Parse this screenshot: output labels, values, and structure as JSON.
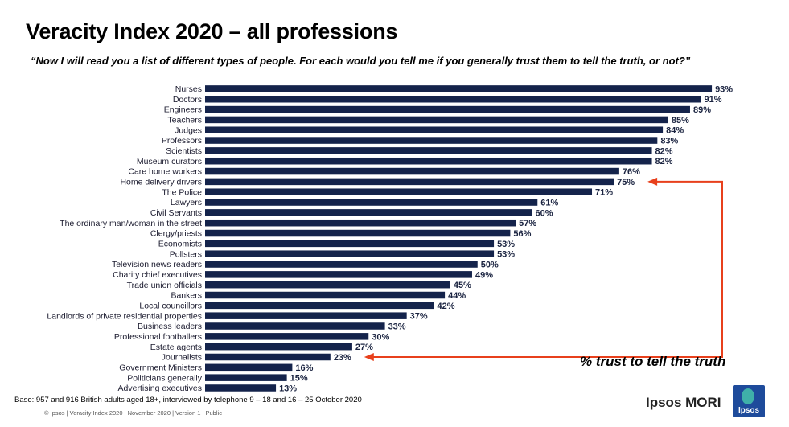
{
  "header": {
    "title": "Veracity Index 2020 – all professions",
    "subtitle": "“Now I will read you a list of different types of people. For each would you tell me if you generally trust them to tell the truth, or not?”"
  },
  "chart_data": {
    "type": "bar",
    "orientation": "horizontal",
    "categories": [
      "Nurses",
      "Doctors",
      "Engineers",
      "Teachers",
      "Judges",
      "Professors",
      "Scientists",
      "Museum curators",
      "Care home workers",
      "Home delivery drivers",
      "The Police",
      "Lawyers",
      "Civil Servants",
      "The ordinary man/woman in the street",
      "Clergy/priests",
      "Economists",
      "Pollsters",
      "Television news readers",
      "Charity chief executives",
      "Trade union officials",
      "Bankers",
      "Local councillors",
      "Landlords of private residential properties",
      "Business leaders",
      "Professional footballers",
      "Estate agents",
      "Journalists",
      "Government Ministers",
      "Politicians generally",
      "Advertising executives"
    ],
    "values": [
      93,
      91,
      89,
      85,
      84,
      83,
      82,
      82,
      76,
      75,
      71,
      61,
      60,
      57,
      56,
      53,
      53,
      50,
      49,
      45,
      44,
      42,
      37,
      33,
      30,
      27,
      23,
      16,
      15,
      13
    ],
    "value_labels": [
      "93%",
      "91%",
      "89%",
      "85%",
      "84%",
      "83%",
      "82%",
      "82%",
      "76%",
      "75%",
      "71%",
      "61%",
      "60%",
      "57%",
      "56%",
      "53%",
      "53%",
      "50%",
      "49%",
      "45%",
      "44%",
      "42%",
      "37%",
      "33%",
      "30%",
      "27%",
      "23%",
      "16%",
      "15%",
      "13%"
    ],
    "xlim": [
      0,
      100
    ],
    "grid": false,
    "bar_color": "#14234b",
    "annotation": "% trust to tell the truth",
    "annotation_arrow_color": "#e8401c",
    "annotation_targets": [
      "Home delivery drivers",
      "Journalists"
    ]
  },
  "footer": {
    "base": "Base: 957 and 916 British adults aged 18+, interviewed by telephone 9 – 18 and 16 – 25 October 2020",
    "copyright": "© Ipsos | Veracity Index 2020 | November 2020 | Version 1 | Public",
    "brand": "Ipsos MORI",
    "logo_text": "Ipsos",
    "logo_color": "#1e4b9b"
  }
}
